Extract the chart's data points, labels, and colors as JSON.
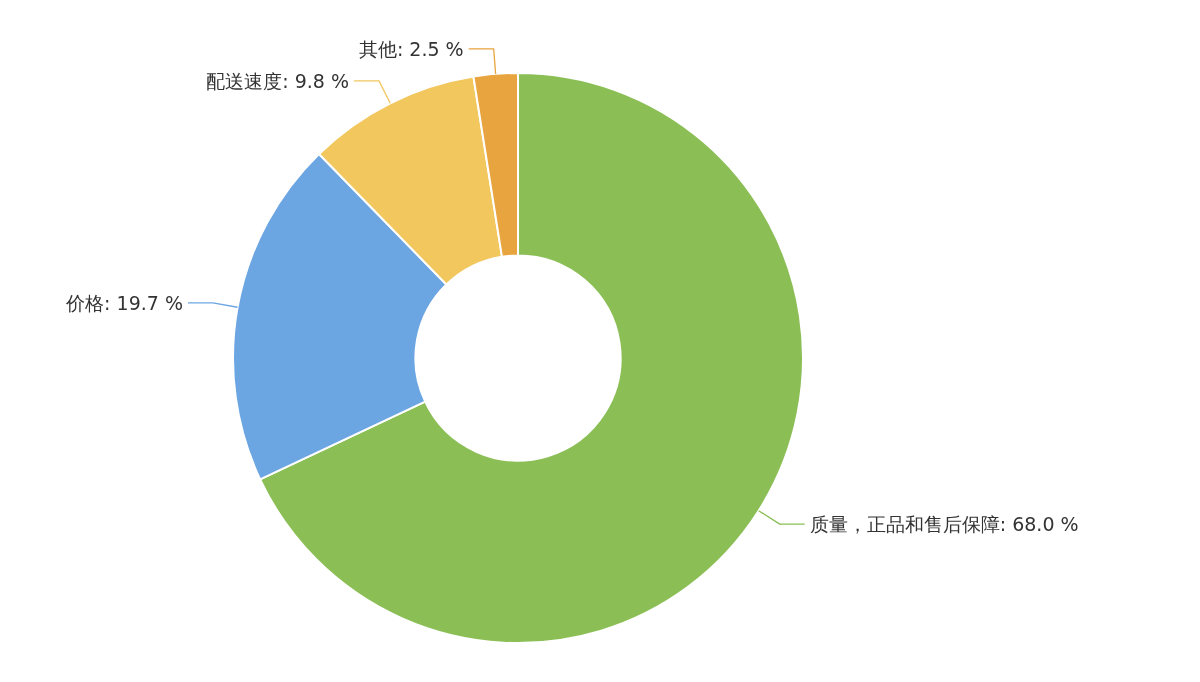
{
  "chart_data": {
    "type": "donut",
    "categories": [
      "质量，正品和售后保障",
      "价格",
      "配送速度",
      "其他"
    ],
    "values": [
      68.0,
      19.7,
      9.8,
      2.5
    ],
    "value_labels": [
      "68.0 %",
      "19.7 %",
      "9.8 %",
      "2.5 %"
    ],
    "colors": [
      "#8bbf56",
      "#6ca6e2",
      "#f1c75e",
      "#e8a43e"
    ]
  }
}
